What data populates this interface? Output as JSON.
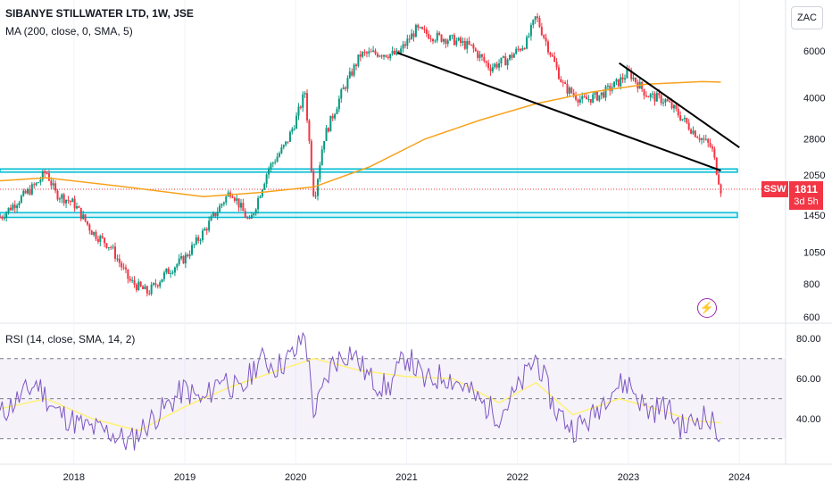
{
  "header": {
    "title": "SIBANYE STILLWATER LTD, 1W, JSE",
    "ma_label": "MA (200, close, 0, SMA, 5)",
    "rsi_label": "RSI (14, close, SMA, 14, 2)"
  },
  "currency_button": "ZAC",
  "last_price": {
    "ticker": "SSW",
    "price": "1811",
    "countdown": "3d 5h"
  },
  "colors": {
    "up": "#089981",
    "down": "#f23645",
    "ma": "#f7a21b",
    "zone": "#00bcd4",
    "trendline": "#000000",
    "rsi": "#7e57c2",
    "rsi_ma": "#fff176",
    "rsi_band": "#7e57c2"
  },
  "icons": {
    "alert": "lightning-icon"
  },
  "chart_data": [
    {
      "type": "candlestick",
      "title": "SIBANYE STILLWATER LTD, 1W, JSE",
      "scale": "log",
      "ylim": [
        600,
        10000
      ],
      "y_ticks": [
        "6000",
        "4000",
        "2800",
        "2050",
        "1450",
        "1050",
        "800",
        "600"
      ],
      "x_ticks": [
        "2018",
        "2019",
        "2020",
        "2021",
        "2022",
        "2023",
        "2024"
      ],
      "xlim": [
        "2017-05",
        "2024-06"
      ],
      "close_path": [
        [
          "2017-05",
          1420
        ],
        [
          "2017-07",
          1650
        ],
        [
          "2017-09",
          1900
        ],
        [
          "2017-10",
          2120
        ],
        [
          "2017-11",
          1750
        ],
        [
          "2018-01",
          1600
        ],
        [
          "2018-03",
          1250
        ],
        [
          "2018-05",
          1100
        ],
        [
          "2018-07",
          820
        ],
        [
          "2018-09",
          740
        ],
        [
          "2018-11",
          880
        ],
        [
          "2019-01",
          1000
        ],
        [
          "2019-03",
          1250
        ],
        [
          "2019-05",
          1600
        ],
        [
          "2019-06",
          1800
        ],
        [
          "2019-08",
          1350
        ],
        [
          "2019-10",
          2150
        ],
        [
          "2019-12",
          2700
        ],
        [
          "2020-01",
          3300
        ],
        [
          "2020-02",
          4200
        ],
        [
          "2020-03",
          1650
        ],
        [
          "2020-04",
          2800
        ],
        [
          "2020-06",
          4200
        ],
        [
          "2020-08",
          5800
        ],
        [
          "2020-10",
          5900
        ],
        [
          "2020-12",
          5800
        ],
        [
          "2021-02",
          7200
        ],
        [
          "2021-04",
          6800
        ],
        [
          "2021-06",
          6600
        ],
        [
          "2021-08",
          6200
        ],
        [
          "2021-10",
          5200
        ],
        [
          "2021-12",
          5600
        ],
        [
          "2022-02",
          6500
        ],
        [
          "2022-03",
          8100
        ],
        [
          "2022-04",
          6600
        ],
        [
          "2022-06",
          4400
        ],
        [
          "2022-08",
          3900
        ],
        [
          "2022-10",
          4100
        ],
        [
          "2022-12",
          4600
        ],
        [
          "2023-01",
          5000
        ],
        [
          "2023-03",
          4100
        ],
        [
          "2023-05",
          3900
        ],
        [
          "2023-06",
          3600
        ],
        [
          "2023-08",
          3000
        ],
        [
          "2023-10",
          2600
        ],
        [
          "2023-11",
          1811
        ]
      ],
      "series": [
        {
          "name": "MA (200, close, 0, SMA, 5)",
          "points": [
            [
              "2017-05",
              1950
            ],
            [
              "2017-10",
              2000
            ],
            [
              "2018-06",
              1860
            ],
            [
              "2019-03",
              1700
            ],
            [
              "2019-09",
              1760
            ],
            [
              "2020-03",
              1850
            ],
            [
              "2020-09",
              2200
            ],
            [
              "2021-03",
              2800
            ],
            [
              "2021-09",
              3300
            ],
            [
              "2022-03",
              3800
            ],
            [
              "2022-09",
              4200
            ],
            [
              "2023-03",
              4500
            ],
            [
              "2023-09",
              4600
            ],
            [
              "2023-11",
              4580
            ]
          ]
        }
      ],
      "levels": [
        {
          "type": "zone",
          "from": 2100,
          "to": 2160
        },
        {
          "type": "zone",
          "from": 1420,
          "to": 1480
        },
        {
          "type": "line",
          "value": 1811
        }
      ],
      "trendlines": [
        {
          "from": [
            "2020-12",
            5900
          ],
          "to": [
            "2023-11",
            2130
          ]
        },
        {
          "from": [
            "2022-12",
            5400
          ],
          "to": [
            "2024-01",
            2600
          ]
        }
      ]
    },
    {
      "type": "line",
      "title": "RSI (14, close, SMA, 14, 2)",
      "ylim": [
        20,
        85
      ],
      "y_ticks": [
        "80.00",
        "60.00",
        "40.00"
      ],
      "bands": [
        30,
        50,
        70
      ],
      "series": [
        {
          "name": "RSI",
          "points": [
            [
              "2017-05",
              42
            ],
            [
              "2017-09",
              58
            ],
            [
              "2017-11",
              44
            ],
            [
              "2018-02",
              36
            ],
            [
              "2018-05",
              33
            ],
            [
              "2018-07",
              28
            ],
            [
              "2018-09",
              38
            ],
            [
              "2018-11",
              46
            ],
            [
              "2019-01",
              55
            ],
            [
              "2019-03",
              48
            ],
            [
              "2019-05",
              62
            ],
            [
              "2019-07",
              52
            ],
            [
              "2019-09",
              70
            ],
            [
              "2019-11",
              66
            ],
            [
              "2020-01",
              73
            ],
            [
              "2020-02",
              83
            ],
            [
              "2020-03",
              42
            ],
            [
              "2020-05",
              68
            ],
            [
              "2020-07",
              74
            ],
            [
              "2020-09",
              60
            ],
            [
              "2020-11",
              55
            ],
            [
              "2021-01",
              72
            ],
            [
              "2021-03",
              58
            ],
            [
              "2021-05",
              62
            ],
            [
              "2021-07",
              57
            ],
            [
              "2021-09",
              48
            ],
            [
              "2021-11",
              42
            ],
            [
              "2022-01",
              54
            ],
            [
              "2022-03",
              71
            ],
            [
              "2022-05",
              45
            ],
            [
              "2022-07",
              35
            ],
            [
              "2022-09",
              40
            ],
            [
              "2022-11",
              55
            ],
            [
              "2023-01",
              58
            ],
            [
              "2023-03",
              44
            ],
            [
              "2023-05",
              46
            ],
            [
              "2023-07",
              35
            ],
            [
              "2023-09",
              42
            ],
            [
              "2023-11",
              33
            ]
          ]
        },
        {
          "name": "RSI MA",
          "points": [
            [
              "2017-05",
              45
            ],
            [
              "2017-10",
              50
            ],
            [
              "2018-03",
              40
            ],
            [
              "2018-08",
              34
            ],
            [
              "2019-01",
              46
            ],
            [
              "2019-06",
              56
            ],
            [
              "2019-11",
              64
            ],
            [
              "2020-03",
              70
            ],
            [
              "2020-08",
              64
            ],
            [
              "2021-01",
              61
            ],
            [
              "2021-06",
              60
            ],
            [
              "2021-11",
              48
            ],
            [
              "2022-03",
              58
            ],
            [
              "2022-07",
              42
            ],
            [
              "2022-12",
              50
            ],
            [
              "2023-04",
              45
            ],
            [
              "2023-08",
              39
            ],
            [
              "2023-11",
              38
            ]
          ]
        }
      ]
    }
  ]
}
